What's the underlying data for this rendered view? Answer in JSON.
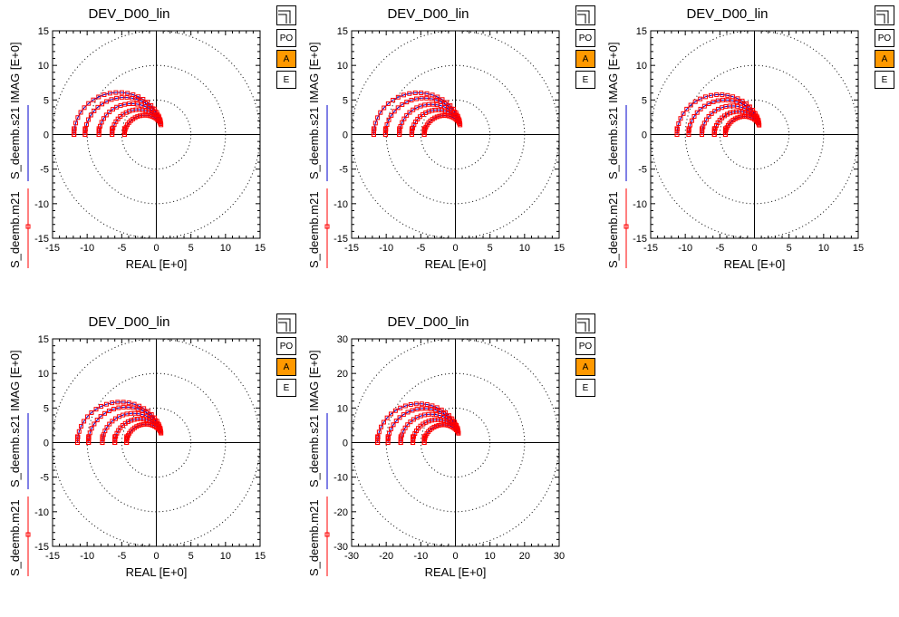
{
  "buttons": {
    "po": "PO",
    "a": "A",
    "e": "E"
  },
  "colors": {
    "measured": "#ff0000",
    "model": "#0000cc",
    "axis": "#000000",
    "grid": "#000000",
    "active_button": "#ff9900"
  },
  "chart_data": [
    {
      "type": "scatter",
      "title": "DEV_D00_lin",
      "xlabel": "REAL [E+0]",
      "ylabel": "IMAG [E+0]",
      "legend": [
        "S_deemb.s21",
        "S_deemb.m21"
      ],
      "xlim": [
        -15,
        15
      ],
      "ylim": [
        -15,
        15
      ],
      "ticks": [
        "-15",
        "-10",
        "-5",
        "0",
        "5",
        "10",
        "15"
      ],
      "grid": "polar",
      "circles": [
        5,
        10,
        15
      ],
      "curves_x_intercepts": [
        -11.9,
        -10.3,
        -8.3,
        -6.4,
        -4.6
      ],
      "curve_end": [
        0.3,
        2.0
      ]
    },
    {
      "type": "scatter",
      "title": "DEV_D00_lin",
      "xlabel": "REAL [E+0]",
      "ylabel": "IMAG [E+0]",
      "legend": [
        "S_deemb.s21",
        "S_deemb.m21"
      ],
      "xlim": [
        -15,
        15
      ],
      "ylim": [
        -15,
        15
      ],
      "ticks": [
        "-15",
        "-10",
        "-5",
        "0",
        "5",
        "10",
        "15"
      ],
      "grid": "polar",
      "circles": [
        5,
        10,
        15
      ],
      "curves_x_intercepts": [
        -11.8,
        -10.1,
        -8.1,
        -6.3,
        -4.5
      ],
      "curve_end": [
        0.3,
        2.0
      ]
    },
    {
      "type": "scatter",
      "title": "DEV_D00_lin",
      "xlabel": "REAL [E+0]",
      "ylabel": "IMAG [E+0]",
      "legend": [
        "S_deemb.s21",
        "S_deemb.m21"
      ],
      "xlim": [
        -15,
        15
      ],
      "ylim": [
        -15,
        15
      ],
      "ticks": [
        "-15",
        "-10",
        "-5",
        "0",
        "5",
        "10",
        "15"
      ],
      "grid": "polar",
      "circles": [
        5,
        10,
        15
      ],
      "curves_x_intercepts": [
        -11.2,
        -9.5,
        -7.6,
        -5.8,
        -4.2
      ],
      "curve_end": [
        0.3,
        2.0
      ]
    },
    {
      "type": "scatter",
      "title": "DEV_D00_lin",
      "xlabel": "REAL [E+0]",
      "ylabel": "IMAG [E+0]",
      "legend": [
        "S_deemb.s21",
        "S_deemb.m21"
      ],
      "xlim": [
        -15,
        15
      ],
      "ylim": [
        -15,
        15
      ],
      "ticks": [
        "-15",
        "-10",
        "-5",
        "0",
        "5",
        "10",
        "15"
      ],
      "grid": "polar",
      "circles": [
        5,
        10,
        15
      ],
      "curves_x_intercepts": [
        -11.4,
        -9.8,
        -7.8,
        -6.0,
        -4.3
      ],
      "curve_end": [
        0.3,
        2.0
      ]
    },
    {
      "type": "scatter",
      "title": "DEV_D00_lin",
      "xlabel": "REAL [E+0]",
      "ylabel": "IMAG [E+0]",
      "legend": [
        "S_deemb.s21",
        "S_deemb.m21"
      ],
      "xlim": [
        -30,
        30
      ],
      "ylim": [
        -30,
        30
      ],
      "ticks": [
        "-30",
        "-20",
        "-10",
        "0",
        "10",
        "20",
        "30"
      ],
      "grid": "polar",
      "circles": [
        10,
        20,
        30
      ],
      "curves_x_intercepts": [
        -22.5,
        -19.5,
        -15.8,
        -12.3,
        -9.0
      ],
      "curve_end": [
        0.6,
        4.0
      ]
    }
  ]
}
